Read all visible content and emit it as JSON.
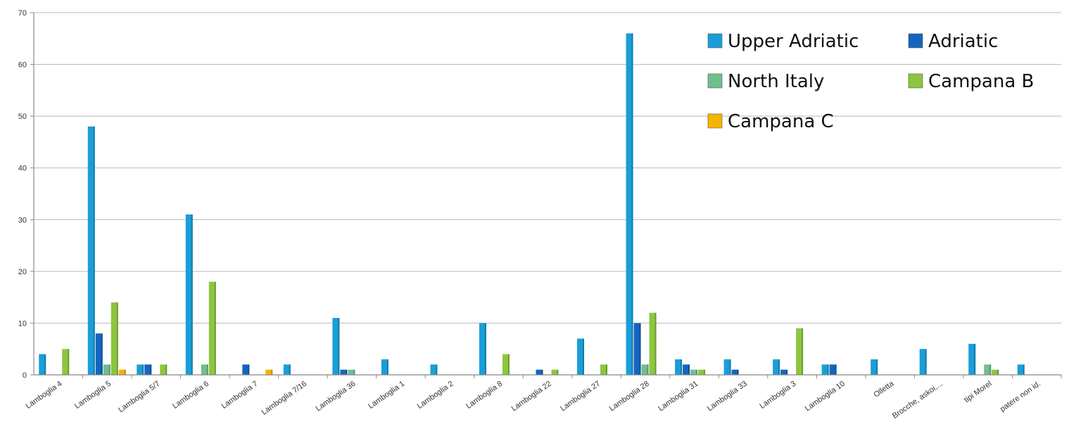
{
  "chart_data": {
    "type": "bar",
    "title": "",
    "xlabel": "",
    "ylabel": "",
    "ylim": [
      0,
      70
    ],
    "yticks": [
      0,
      10,
      20,
      30,
      40,
      50,
      60,
      70
    ],
    "grid": true,
    "legend_position": "top-right",
    "categories": [
      "Lamboglia 4",
      "Lamboglia 5",
      "Lamboglia 5/7",
      "Lamboglia 6",
      "Lamboglia 7",
      "Lamboglia 7/16",
      "Lamboglia 36",
      "Lamboglia 1",
      "Lamboglia 2",
      "Lamboglia 8",
      "Lamboglia 22",
      "Lamboglia 27",
      "Lamboglia 28",
      "Lamboglia 31",
      "Lamboglia 33",
      "Lamboglia 3",
      "Lamboglia 10",
      "Olletta",
      "Brocche, askoi,...",
      "tipi Morel",
      "patere non id."
    ],
    "series": [
      {
        "name": "Upper Adriatic",
        "color": "#1a9ed9",
        "values": [
          4,
          48,
          2,
          31,
          0,
          2,
          11,
          3,
          2,
          10,
          0,
          7,
          66,
          3,
          3,
          3,
          2,
          3,
          5,
          6,
          2
        ]
      },
      {
        "name": "Adriatic",
        "color": "#1565c0",
        "values": [
          0,
          8,
          2,
          0,
          2,
          0,
          1,
          0,
          0,
          0,
          1,
          0,
          10,
          2,
          1,
          1,
          2,
          0,
          0,
          0,
          0
        ]
      },
      {
        "name": "North Italy",
        "color": "#6fbf8e",
        "values": [
          0,
          2,
          0,
          2,
          0,
          0,
          1,
          0,
          0,
          0,
          0,
          0,
          2,
          1,
          0,
          0,
          0,
          0,
          0,
          2,
          0
        ]
      },
      {
        "name": "Campana B",
        "color": "#8cc63f",
        "values": [
          5,
          14,
          2,
          18,
          0,
          0,
          0,
          0,
          0,
          4,
          1,
          2,
          12,
          1,
          0,
          9,
          0,
          0,
          0,
          1,
          0
        ]
      },
      {
        "name": "Campana C",
        "color": "#f5b400",
        "values": [
          0,
          1,
          0,
          0,
          1,
          0,
          0,
          0,
          0,
          0,
          0,
          0,
          0,
          0,
          0,
          0,
          0,
          0,
          0,
          0,
          0
        ]
      }
    ]
  }
}
